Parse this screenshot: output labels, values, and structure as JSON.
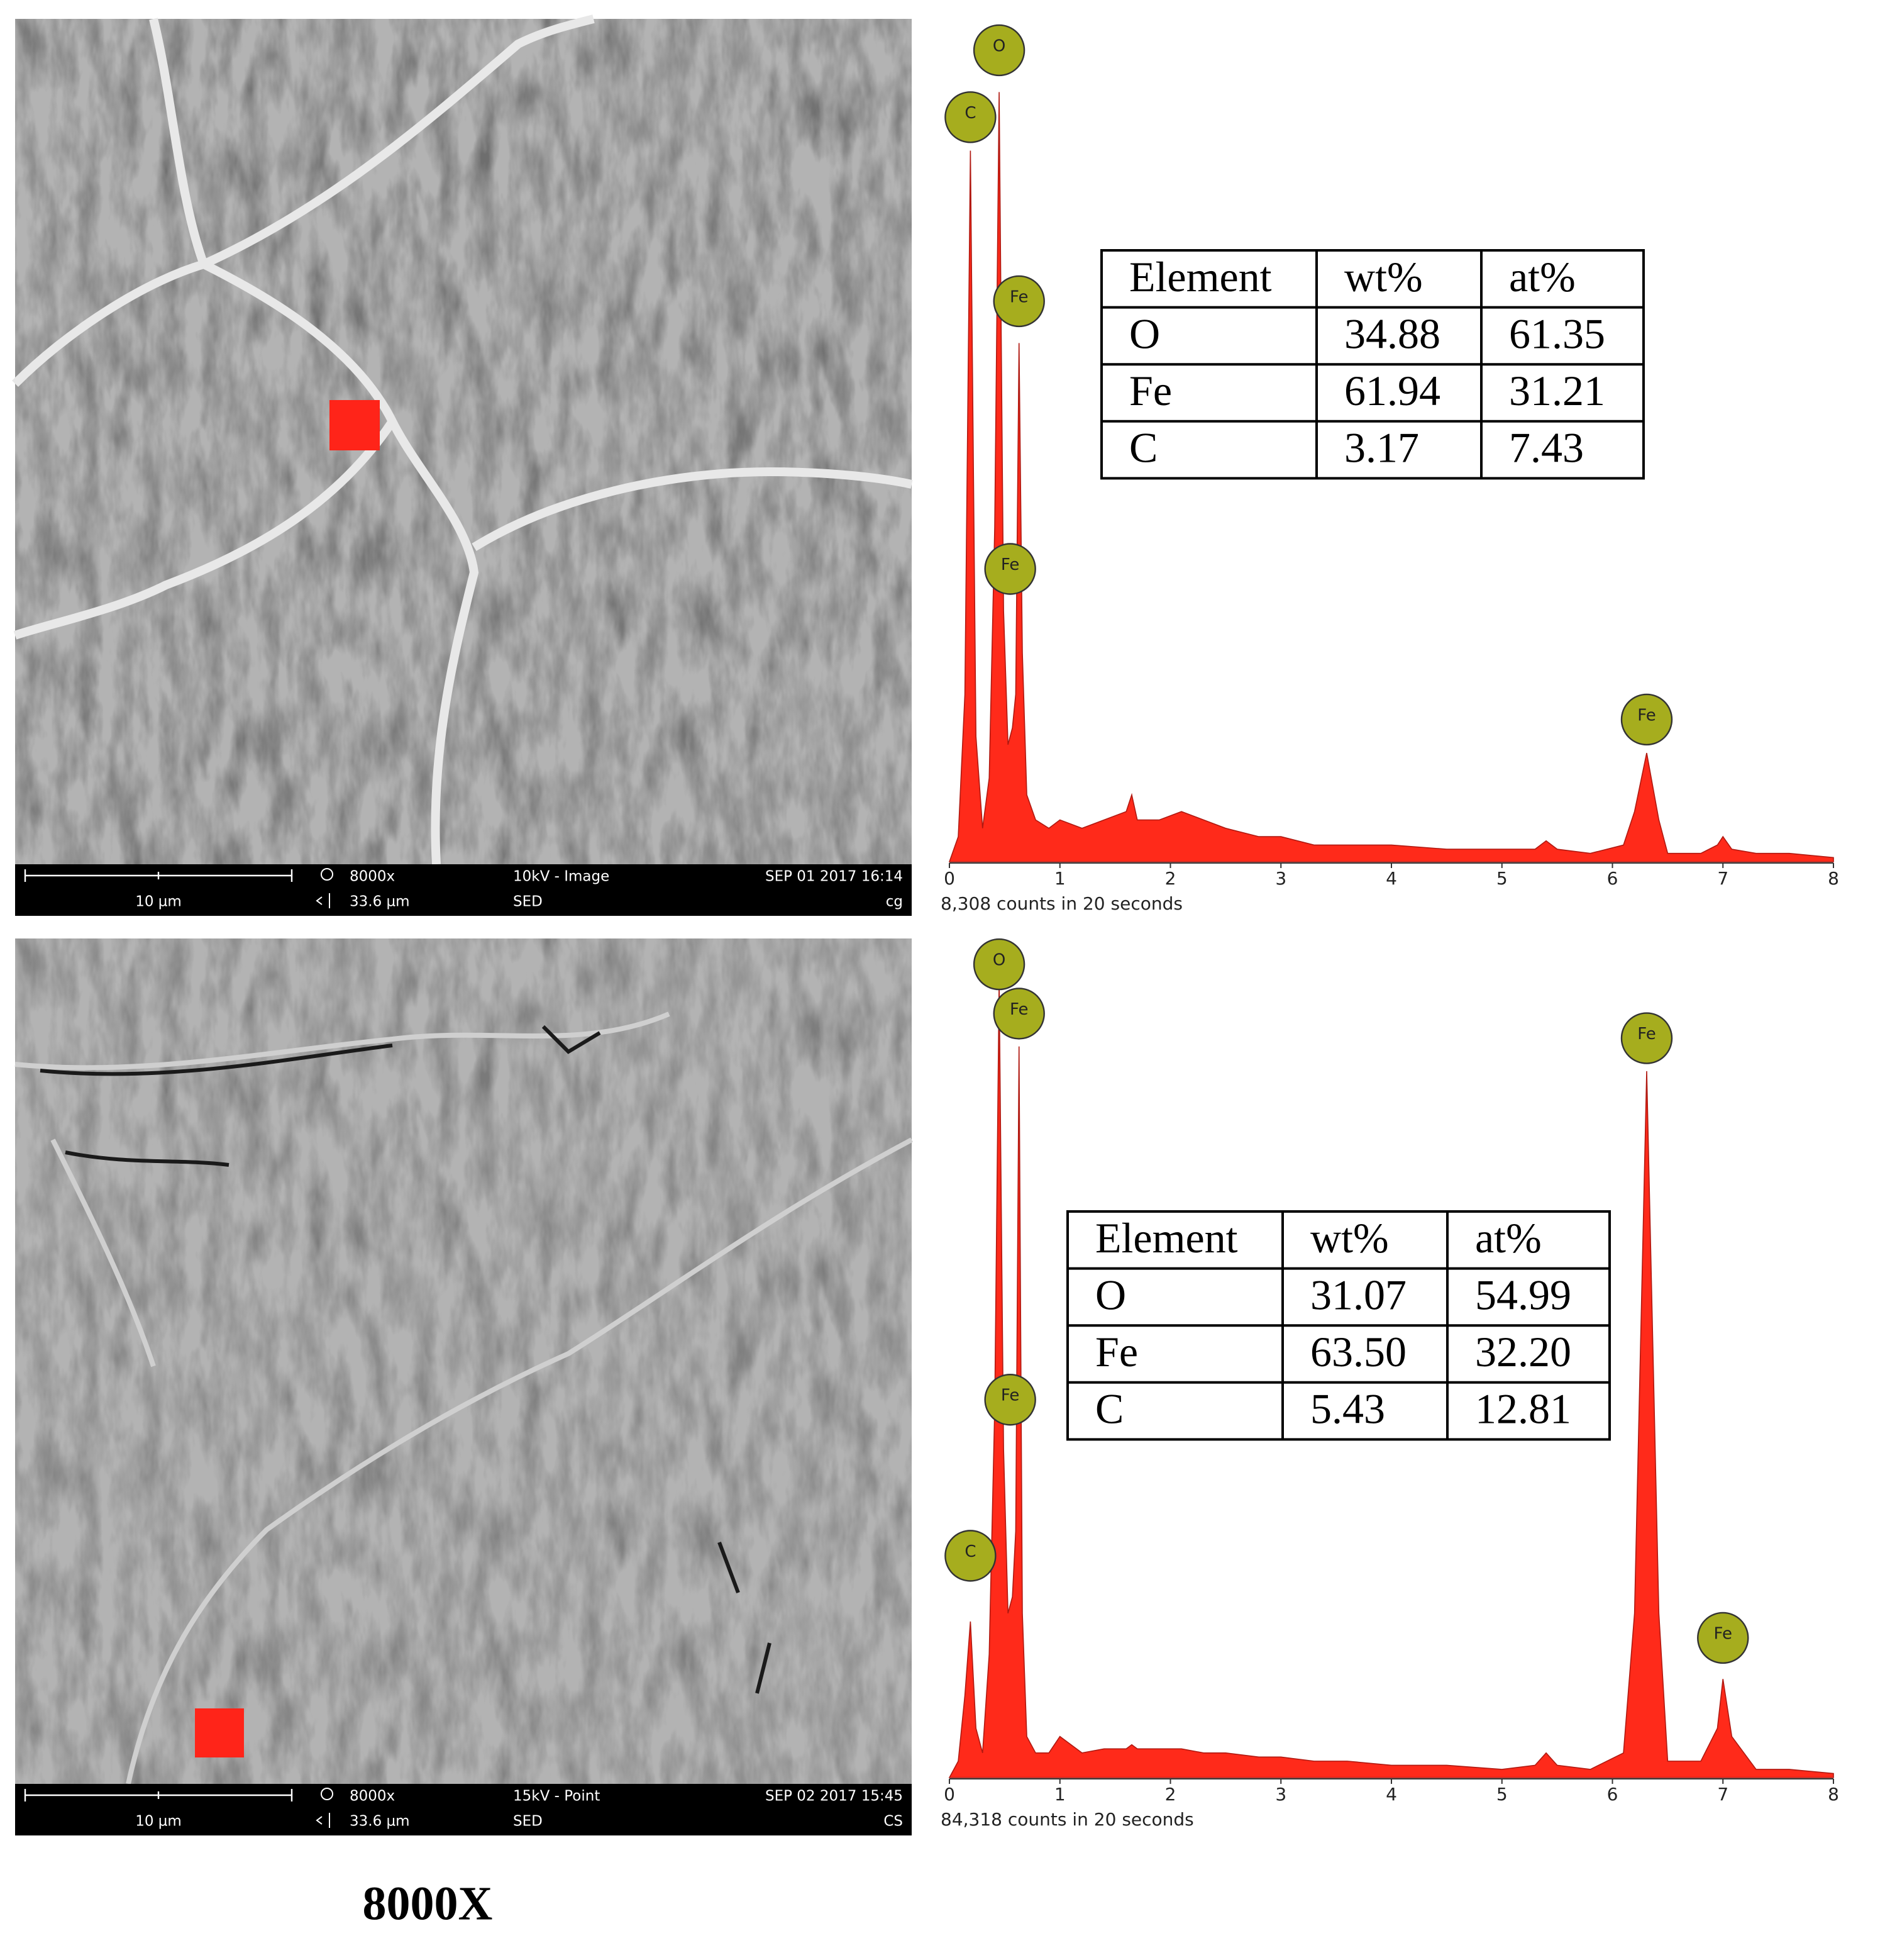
{
  "panels": [
    {
      "sem": {
        "scale_bar": "10 µm",
        "magnification": "8000x",
        "hfw": "33.6 µm",
        "mode": "10kV - Image",
        "detector": "SED",
        "date": "SEP 01 2017 16:14",
        "operator": "cg"
      },
      "table": {
        "header": [
          "Element",
          "wt%",
          "at%"
        ],
        "rows": [
          [
            "O",
            "34.88",
            "61.35"
          ],
          [
            "Fe",
            "61.94",
            "31.21"
          ],
          [
            "C",
            "3.17",
            "7.43"
          ]
        ]
      }
    },
    {
      "sem": {
        "scale_bar": "10 µm",
        "magnification": "8000x",
        "hfw": "33.6 µm",
        "mode": "15kV - Point",
        "detector": "SED",
        "date": "SEP 02 2017 15:45",
        "operator": "CS"
      },
      "table": {
        "header": [
          "Element",
          "wt%",
          "at%"
        ],
        "rows": [
          [
            "O",
            "31.07",
            "54.99"
          ],
          [
            "Fe",
            "63.50",
            "32.20"
          ],
          [
            "C",
            "5.43",
            "12.81"
          ]
        ]
      }
    }
  ],
  "figure_label": "8000X",
  "chart_data": [
    {
      "type": "area",
      "caption": "8,308 counts in 20 seconds",
      "color": "#ff2a1a",
      "xlim": [
        0,
        8
      ],
      "xticks": [
        0,
        1,
        2,
        3,
        4,
        5,
        6,
        7,
        8
      ],
      "ylim": [
        0,
        100
      ],
      "x": [
        0,
        0.08,
        0.14,
        0.19,
        0.24,
        0.3,
        0.36,
        0.41,
        0.45,
        0.49,
        0.53,
        0.57,
        0.6,
        0.63,
        0.66,
        0.7,
        0.78,
        0.9,
        1.0,
        1.2,
        1.4,
        1.6,
        1.65,
        1.7,
        1.9,
        2.1,
        2.3,
        2.5,
        2.8,
        3.0,
        3.3,
        3.6,
        4.0,
        4.5,
        5.0,
        5.3,
        5.4,
        5.5,
        5.8,
        6.1,
        6.2,
        6.31,
        6.42,
        6.5,
        6.8,
        6.95,
        7.0,
        7.08,
        7.3,
        7.6,
        8.0
      ],
      "values": [
        0,
        3,
        20,
        85,
        15,
        4,
        10,
        40,
        92,
        30,
        14,
        16,
        20,
        62,
        25,
        8,
        5,
        4,
        5,
        4,
        5,
        6,
        8,
        5,
        5,
        6,
        5,
        4,
        3,
        3,
        2,
        2,
        2,
        1.5,
        1.5,
        1.5,
        2.5,
        1.5,
        1,
        2,
        6,
        13,
        5,
        1,
        1,
        2,
        3,
        1.5,
        1,
        1,
        0.5
      ],
      "peak_labels": [
        {
          "label": "O",
          "x": 0.45,
          "y": 97
        },
        {
          "label": "C",
          "x": 0.19,
          "y": 89
        },
        {
          "label": "Fe",
          "x": 0.63,
          "y": 67
        },
        {
          "label": "Fe",
          "x": 0.55,
          "y": 35
        },
        {
          "label": "Fe",
          "x": 6.31,
          "y": 17
        }
      ]
    },
    {
      "type": "area",
      "caption": "84,318 counts in 20 seconds",
      "color": "#ff2a1a",
      "xlim": [
        0,
        8
      ],
      "xticks": [
        0,
        1,
        2,
        3,
        4,
        5,
        6,
        7,
        8
      ],
      "ylim": [
        0,
        100
      ],
      "x": [
        0,
        0.08,
        0.14,
        0.19,
        0.24,
        0.3,
        0.36,
        0.41,
        0.45,
        0.49,
        0.53,
        0.57,
        0.6,
        0.63,
        0.66,
        0.7,
        0.78,
        0.9,
        1.0,
        1.2,
        1.4,
        1.6,
        1.65,
        1.7,
        1.9,
        2.1,
        2.3,
        2.5,
        2.8,
        3.0,
        3.3,
        3.6,
        4.0,
        4.5,
        5.0,
        5.3,
        5.4,
        5.5,
        5.8,
        6.1,
        6.2,
        6.31,
        6.42,
        6.5,
        6.8,
        6.95,
        7.0,
        7.08,
        7.3,
        7.6,
        8.0
      ],
      "values": [
        0,
        2,
        10,
        19,
        6,
        3,
        15,
        45,
        97,
        40,
        20,
        22,
        30,
        89,
        20,
        5,
        3,
        3,
        5,
        3,
        3.5,
        3.5,
        4,
        3.5,
        3.5,
        3.5,
        3,
        3,
        2.5,
        2.5,
        2,
        2,
        1.5,
        1.5,
        1,
        1.5,
        3,
        1.5,
        1,
        3,
        20,
        86,
        20,
        2,
        2,
        6,
        12,
        5,
        1,
        1,
        0.5
      ],
      "peak_labels": [
        {
          "label": "O",
          "x": 0.45,
          "y": 99
        },
        {
          "label": "Fe",
          "x": 0.63,
          "y": 93
        },
        {
          "label": "Fe",
          "x": 0.55,
          "y": 46
        },
        {
          "label": "C",
          "x": 0.19,
          "y": 27
        },
        {
          "label": "Fe",
          "x": 6.31,
          "y": 90
        },
        {
          "label": "Fe",
          "x": 7.0,
          "y": 17
        }
      ]
    }
  ]
}
